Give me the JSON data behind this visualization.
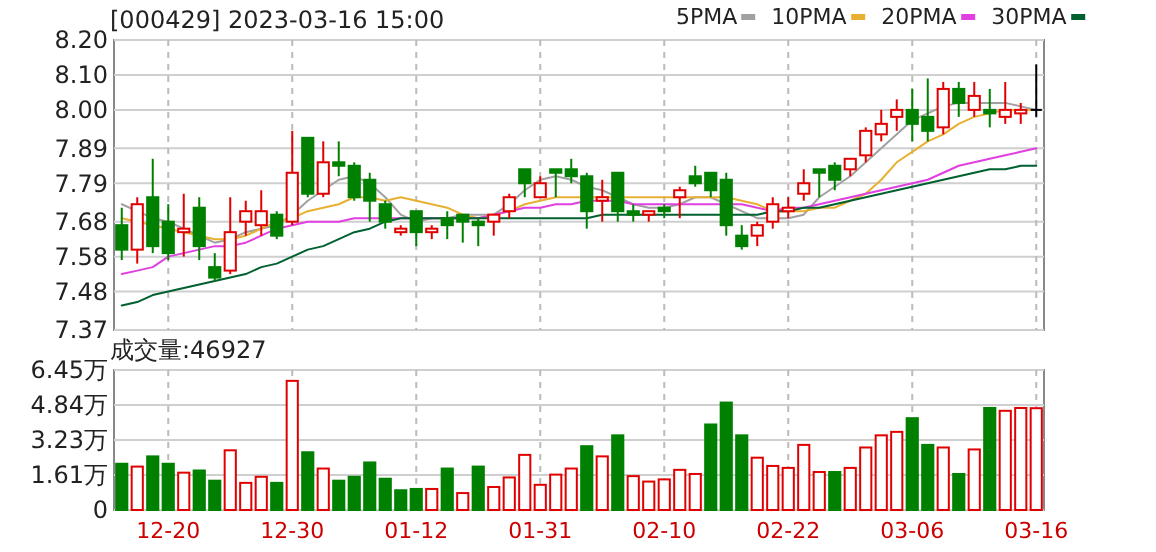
{
  "chart_data": [
    {
      "type": "candlestick",
      "title": "[000429] 2023-03-16 15:00",
      "ohlc": [
        [
          7.67,
          7.72,
          7.57,
          7.6
        ],
        [
          7.6,
          7.75,
          7.56,
          7.73
        ],
        [
          7.75,
          7.86,
          7.59,
          7.61
        ],
        [
          7.68,
          7.73,
          7.57,
          7.59
        ],
        [
          7.65,
          7.76,
          7.58,
          7.66
        ],
        [
          7.72,
          7.75,
          7.57,
          7.61
        ],
        [
          7.55,
          7.59,
          7.51,
          7.52
        ],
        [
          7.54,
          7.75,
          7.53,
          7.65
        ],
        [
          7.68,
          7.74,
          7.64,
          7.71
        ],
        [
          7.67,
          7.77,
          7.64,
          7.71
        ],
        [
          7.7,
          7.71,
          7.63,
          7.64
        ],
        [
          7.68,
          7.94,
          7.67,
          7.82
        ],
        [
          7.92,
          7.92,
          7.75,
          7.76
        ],
        [
          7.76,
          7.91,
          7.75,
          7.85
        ],
        [
          7.85,
          7.91,
          7.81,
          7.84
        ],
        [
          7.84,
          7.85,
          7.74,
          7.75
        ],
        [
          7.8,
          7.82,
          7.68,
          7.74
        ],
        [
          7.73,
          7.74,
          7.66,
          7.68
        ],
        [
          7.65,
          7.67,
          7.64,
          7.66
        ],
        [
          7.71,
          7.71,
          7.61,
          7.65
        ],
        [
          7.65,
          7.67,
          7.63,
          7.66
        ],
        [
          7.69,
          7.71,
          7.63,
          7.67
        ],
        [
          7.7,
          7.7,
          7.62,
          7.68
        ],
        [
          7.68,
          7.69,
          7.61,
          7.67
        ],
        [
          7.68,
          7.7,
          7.64,
          7.7
        ],
        [
          7.71,
          7.76,
          7.69,
          7.75
        ],
        [
          7.83,
          7.83,
          7.75,
          7.79
        ],
        [
          7.75,
          7.81,
          7.75,
          7.79
        ],
        [
          7.83,
          7.83,
          7.75,
          7.82
        ],
        [
          7.83,
          7.86,
          7.79,
          7.81
        ],
        [
          7.81,
          7.82,
          7.66,
          7.71
        ],
        [
          7.74,
          7.8,
          7.68,
          7.75
        ],
        [
          7.82,
          7.82,
          7.68,
          7.71
        ],
        [
          7.71,
          7.73,
          7.68,
          7.7
        ],
        [
          7.7,
          7.71,
          7.68,
          7.71
        ],
        [
          7.72,
          7.73,
          7.69,
          7.71
        ],
        [
          7.75,
          7.78,
          7.69,
          7.77
        ],
        [
          7.81,
          7.84,
          7.78,
          7.79
        ],
        [
          7.82,
          7.82,
          7.75,
          7.77
        ],
        [
          7.8,
          7.82,
          7.64,
          7.67
        ],
        [
          7.64,
          7.67,
          7.6,
          7.61
        ],
        [
          7.64,
          7.68,
          7.61,
          7.67
        ],
        [
          7.68,
          7.75,
          7.66,
          7.73
        ],
        [
          7.71,
          7.75,
          7.69,
          7.72
        ],
        [
          7.76,
          7.83,
          7.74,
          7.79
        ],
        [
          7.83,
          7.83,
          7.75,
          7.82
        ],
        [
          7.84,
          7.85,
          7.77,
          7.8
        ],
        [
          7.83,
          7.86,
          7.81,
          7.86
        ],
        [
          7.87,
          7.95,
          7.85,
          7.94
        ],
        [
          7.93,
          8.0,
          7.91,
          7.96
        ],
        [
          7.98,
          8.03,
          7.94,
          8.0
        ],
        [
          8.0,
          8.06,
          7.91,
          7.96
        ],
        [
          7.98,
          8.09,
          7.91,
          7.94
        ],
        [
          7.95,
          8.08,
          7.93,
          8.06
        ],
        [
          8.06,
          8.08,
          7.98,
          8.02
        ],
        [
          8.0,
          8.08,
          7.98,
          8.04
        ],
        [
          8.0,
          8.06,
          7.95,
          7.99
        ],
        [
          7.98,
          8.08,
          7.96,
          8.0
        ],
        [
          7.99,
          8.02,
          7.96,
          8.0
        ],
        [
          8.0,
          8.13,
          7.98,
          8.0
        ]
      ],
      "colors": [
        "#008000",
        "#e00000",
        "#008000",
        "#008000",
        "#e00000",
        "#008000",
        "#008000",
        "#e00000",
        "#e00000",
        "#e00000",
        "#008000",
        "#e00000",
        "#008000",
        "#e00000",
        "#008000",
        "#008000",
        "#008000",
        "#008000",
        "#e00000",
        "#008000",
        "#e00000",
        "#008000",
        "#008000",
        "#008000",
        "#e00000",
        "#e00000",
        "#008000",
        "#e00000",
        "#008000",
        "#008000",
        "#008000",
        "#e00000",
        "#008000",
        "#008000",
        "#e00000",
        "#008000",
        "#e00000",
        "#008000",
        "#008000",
        "#008000",
        "#008000",
        "#e00000",
        "#e00000",
        "#e00000",
        "#e00000",
        "#008000",
        "#008000",
        "#e00000",
        "#e00000",
        "#e00000",
        "#e00000",
        "#008000",
        "#008000",
        "#e00000",
        "#008000",
        "#e00000",
        "#008000",
        "#e00000",
        "#e00000",
        "#000000"
      ],
      "series": [
        {
          "type": "line",
          "name": "5PMA",
          "color": "#a0a0a0",
          "values": [
            7.73,
            7.71,
            7.69,
            7.68,
            7.66,
            7.64,
            7.62,
            7.63,
            7.65,
            7.66,
            7.67,
            7.7,
            7.74,
            7.77,
            7.8,
            7.81,
            7.79,
            7.75,
            7.7,
            7.68,
            7.69,
            7.69,
            7.7,
            7.7,
            7.7,
            7.73,
            7.77,
            7.8,
            7.81,
            7.8,
            7.78,
            7.77,
            7.75,
            7.73,
            7.72,
            7.72,
            7.73,
            7.75,
            7.75,
            7.73,
            7.71,
            7.69,
            7.69,
            7.69,
            7.7,
            7.75,
            7.78,
            7.81,
            7.85,
            7.89,
            7.93,
            7.97,
            7.99,
            8.01,
            8.02,
            8.02,
            8.02,
            8.02,
            8.01,
            8.0
          ]
        },
        {
          "type": "line",
          "name": "10PMA",
          "color": "#e8b030",
          "values": [
            7.69,
            7.68,
            7.67,
            7.66,
            7.65,
            7.64,
            7.63,
            7.63,
            7.64,
            7.66,
            7.68,
            7.69,
            7.71,
            7.72,
            7.73,
            7.75,
            7.75,
            7.74,
            7.75,
            7.74,
            7.73,
            7.72,
            7.7,
            7.69,
            7.7,
            7.71,
            7.73,
            7.74,
            7.75,
            7.75,
            7.75,
            7.75,
            7.75,
            7.75,
            7.75,
            7.75,
            7.75,
            7.75,
            7.75,
            7.75,
            7.74,
            7.73,
            7.71,
            7.71,
            7.71,
            7.72,
            7.72,
            7.74,
            7.76,
            7.8,
            7.85,
            7.88,
            7.91,
            7.93,
            7.96,
            7.98,
            7.99,
            8.0,
            8.0,
            8.0
          ]
        },
        {
          "type": "line",
          "name": "20PMA",
          "color": "#e040e0",
          "values": [
            7.53,
            7.54,
            7.55,
            7.58,
            7.59,
            7.6,
            7.61,
            7.61,
            7.62,
            7.64,
            7.66,
            7.67,
            7.68,
            7.68,
            7.68,
            7.69,
            7.69,
            7.69,
            7.69,
            7.69,
            7.69,
            7.69,
            7.69,
            7.69,
            7.7,
            7.71,
            7.72,
            7.72,
            7.73,
            7.73,
            7.74,
            7.74,
            7.74,
            7.73,
            7.73,
            7.73,
            7.73,
            7.73,
            7.73,
            7.73,
            7.73,
            7.72,
            7.71,
            7.72,
            7.72,
            7.73,
            7.74,
            7.75,
            7.76,
            7.77,
            7.78,
            7.79,
            7.8,
            7.82,
            7.84,
            7.85,
            7.86,
            7.87,
            7.88,
            7.89
          ]
        },
        {
          "type": "line",
          "name": "30PMA",
          "color": "#006030",
          "values": [
            7.44,
            7.45,
            7.47,
            7.48,
            7.49,
            7.5,
            7.51,
            7.52,
            7.53,
            7.55,
            7.56,
            7.58,
            7.6,
            7.61,
            7.63,
            7.65,
            7.66,
            7.68,
            7.69,
            7.69,
            7.69,
            7.69,
            7.69,
            7.69,
            7.69,
            7.69,
            7.69,
            7.69,
            7.69,
            7.69,
            7.69,
            7.7,
            7.7,
            7.7,
            7.7,
            7.7,
            7.7,
            7.7,
            7.7,
            7.7,
            7.7,
            7.7,
            7.71,
            7.71,
            7.72,
            7.72,
            7.73,
            7.74,
            7.75,
            7.76,
            7.77,
            7.78,
            7.79,
            7.8,
            7.81,
            7.82,
            7.83,
            7.83,
            7.84,
            7.84
          ]
        }
      ],
      "ylim": [
        7.37,
        8.2
      ],
      "yticks": [
        7.37,
        7.48,
        7.58,
        7.68,
        7.79,
        7.89,
        {
          "value": 8.0,
          "label": "8.00"
        },
        {
          "value": 8.1,
          "label": "8.10"
        },
        {
          "value": 8.2,
          "label": "8.20"
        }
      ],
      "grid": true,
      "legend": "top right",
      "tick_labels": "y"
    },
    {
      "type": "bar",
      "title": "成交量:46927",
      "categories": [
        null,
        null,
        null,
        "12-20",
        null,
        null,
        null,
        null,
        null,
        null,
        null,
        "12-30",
        null,
        null,
        null,
        null,
        null,
        null,
        null,
        "01-12",
        null,
        null,
        null,
        null,
        null,
        null,
        null,
        "01-31",
        null,
        null,
        null,
        null,
        null,
        null,
        null,
        "02-10",
        null,
        null,
        null,
        null,
        null,
        null,
        null,
        "02-22",
        null,
        null,
        null,
        null,
        null,
        null,
        null,
        "03-06",
        null,
        null,
        null,
        null,
        null,
        null,
        null,
        "03-16"
      ],
      "values": [
        2.13,
        2.0,
        2.47,
        2.13,
        1.72,
        1.82,
        1.35,
        2.75,
        1.25,
        1.53,
        1.25,
        5.95,
        2.66,
        1.91,
        1.35,
        1.53,
        2.19,
        1.44,
        0.91,
        0.97,
        0.97,
        1.91,
        0.78,
        2.0,
        1.06,
        1.5,
        2.54,
        1.16,
        1.63,
        1.91,
        2.94,
        2.47,
        3.44,
        1.56,
        1.31,
        1.41,
        1.85,
        1.66,
        3.94,
        4.95,
        3.44,
        2.41,
        2.03,
        1.94,
        3.0,
        1.75,
        1.75,
        1.94,
        2.88,
        3.44,
        3.6,
        4.23,
        3.0,
        2.88,
        1.66,
        2.79,
        4.7,
        4.57,
        4.7,
        4.69
      ],
      "colors": [
        "#008000",
        "#e00000",
        "#008000",
        "#008000",
        "#e00000",
        "#008000",
        "#008000",
        "#e00000",
        "#e00000",
        "#e00000",
        "#008000",
        "#e00000",
        "#008000",
        "#e00000",
        "#008000",
        "#008000",
        "#008000",
        "#008000",
        "#008000",
        "#008000",
        "#e00000",
        "#008000",
        "#e00000",
        "#008000",
        "#e00000",
        "#e00000",
        "#e00000",
        "#e00000",
        "#e00000",
        "#e00000",
        "#008000",
        "#e00000",
        "#008000",
        "#e00000",
        "#e00000",
        "#e00000",
        "#e00000",
        "#e00000",
        "#008000",
        "#008000",
        "#008000",
        "#e00000",
        "#e00000",
        "#e00000",
        "#e00000",
        "#e00000",
        "#008000",
        "#e00000",
        "#e00000",
        "#e00000",
        "#e00000",
        "#008000",
        "#008000",
        "#e00000",
        "#008000",
        "#e00000",
        "#008000",
        "#e00000",
        "#e00000",
        "#e00000"
      ],
      "ylim": [
        0,
        6.45
      ],
      "yticks": [
        0,
        {
          "value": 1.61,
          "label": "1.61万"
        },
        {
          "value": 3.23,
          "label": "3.23万"
        },
        {
          "value": 4.84,
          "label": "4.84万"
        },
        {
          "value": 6.45,
          "label": "6.45万"
        }
      ],
      "grid": true
    }
  ]
}
